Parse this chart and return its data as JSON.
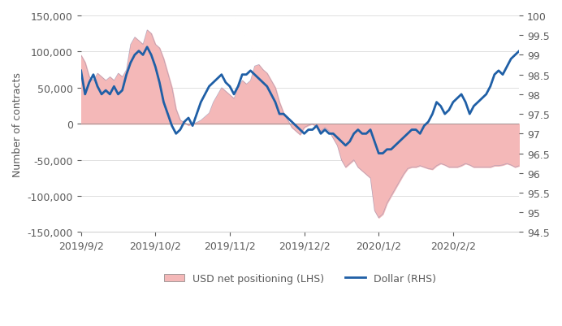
{
  "ylabel_left": "Number of contracts",
  "lhs_ylim": [
    -150000,
    150000
  ],
  "rhs_ylim": [
    94.5,
    100
  ],
  "lhs_yticks": [
    -150000,
    -100000,
    -50000,
    0,
    50000,
    100000,
    150000
  ],
  "rhs_yticks": [
    94.5,
    95,
    95.5,
    96,
    96.5,
    97,
    97.5,
    98,
    98.5,
    99,
    99.5,
    100
  ],
  "xtick_labels": [
    "2019/9/2",
    "2019/10/2",
    "2019/11/2",
    "2019/12/2",
    "2020/1/2",
    "2020/2/2"
  ],
  "legend_labels": [
    "USD net positioning (LHS)",
    "Dollar (RHS)"
  ],
  "fill_color": "#f4b8b8",
  "fill_alpha": 0.7,
  "line_color": "#1f5fa6",
  "line_width": 2.0,
  "dates": [
    0,
    1,
    2,
    3,
    4,
    5,
    6,
    7,
    8,
    9,
    10,
    11,
    12,
    13,
    14,
    15,
    16,
    17,
    18,
    19,
    20,
    21,
    22,
    23,
    24,
    25,
    26,
    27,
    28,
    29,
    30,
    31,
    32,
    33,
    34,
    35,
    36,
    37,
    38,
    39,
    40,
    41,
    42,
    43,
    44,
    45,
    46,
    47,
    48,
    49,
    50,
    51,
    52,
    53,
    54,
    55,
    56,
    57,
    58,
    59,
    60,
    61,
    62,
    63,
    64,
    65,
    66,
    67,
    68,
    69,
    70,
    71,
    72,
    73,
    74,
    75,
    76,
    77,
    78,
    79,
    80,
    81,
    82,
    83,
    84,
    85,
    86,
    87,
    88,
    89,
    90,
    91,
    92,
    93,
    94,
    95,
    96,
    97,
    98,
    99,
    100,
    101,
    102,
    103,
    104,
    105,
    106,
    107
  ],
  "lhs_values": [
    95000,
    85000,
    65000,
    60000,
    70000,
    65000,
    60000,
    65000,
    60000,
    70000,
    65000,
    75000,
    110000,
    120000,
    115000,
    110000,
    130000,
    125000,
    110000,
    105000,
    90000,
    70000,
    50000,
    20000,
    5000,
    2000,
    -2000,
    0,
    2000,
    5000,
    10000,
    15000,
    30000,
    40000,
    50000,
    45000,
    40000,
    35000,
    50000,
    60000,
    55000,
    60000,
    80000,
    82000,
    75000,
    70000,
    60000,
    50000,
    30000,
    15000,
    5000,
    -5000,
    -10000,
    -15000,
    -5000,
    -2000,
    0,
    -5000,
    -10000,
    -5000,
    -10000,
    -20000,
    -30000,
    -50000,
    -60000,
    -55000,
    -50000,
    -60000,
    -65000,
    -70000,
    -75000,
    -120000,
    -130000,
    -125000,
    -110000,
    -100000,
    -90000,
    -80000,
    -70000,
    -62000,
    -60000,
    -60000,
    -58000,
    -60000,
    -62000,
    -63000,
    -58000,
    -55000,
    -57000,
    -60000,
    -60000,
    -60000,
    -58000,
    -55000,
    -57000,
    -60000,
    -60000,
    -60000,
    -60000,
    -60000,
    -58000,
    -58000,
    -57000,
    -55000,
    -57000,
    -60000,
    -58000,
    -57000
  ],
  "rhs_values": [
    98.6,
    98.0,
    98.3,
    98.5,
    98.2,
    98.0,
    98.1,
    98.0,
    98.2,
    98.0,
    98.1,
    98.5,
    98.8,
    99.0,
    99.1,
    99.0,
    99.2,
    99.0,
    98.7,
    98.3,
    97.8,
    97.5,
    97.2,
    97.0,
    97.1,
    97.3,
    97.4,
    97.2,
    97.5,
    97.8,
    98.0,
    98.2,
    98.3,
    98.4,
    98.5,
    98.3,
    98.2,
    98.0,
    98.2,
    98.5,
    98.5,
    98.6,
    98.5,
    98.4,
    98.3,
    98.2,
    98.0,
    97.8,
    97.5,
    97.5,
    97.4,
    97.3,
    97.2,
    97.1,
    97.0,
    97.1,
    97.1,
    97.2,
    97.0,
    97.1,
    97.0,
    97.0,
    96.9,
    96.8,
    96.7,
    96.8,
    97.0,
    97.1,
    97.0,
    97.0,
    97.1,
    96.8,
    96.5,
    96.5,
    96.6,
    96.6,
    96.7,
    96.8,
    96.9,
    97.0,
    97.1,
    97.1,
    97.0,
    97.2,
    97.3,
    97.5,
    97.8,
    97.7,
    97.5,
    97.6,
    97.8,
    97.9,
    98.0,
    97.8,
    97.5,
    97.7,
    97.8,
    97.9,
    98.0,
    98.2,
    98.5,
    98.6,
    98.5,
    98.7,
    98.9,
    99.0,
    99.1,
    99.2
  ],
  "xtick_positions": [
    0,
    18,
    36,
    54,
    72,
    90
  ],
  "background_color": "#ffffff",
  "font_color": "#5a5a5a",
  "font_size": 9
}
